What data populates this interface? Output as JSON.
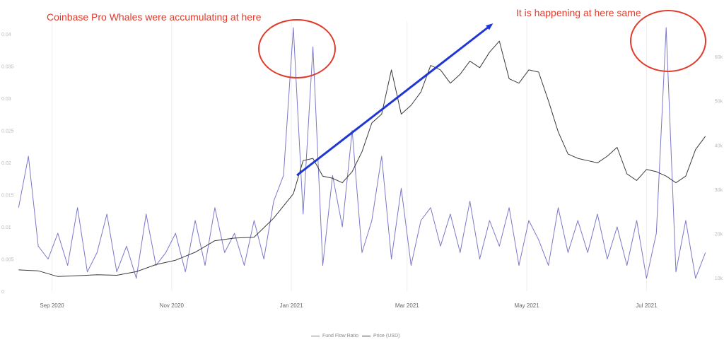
{
  "annotations": {
    "left": "Coinbase Pro Whales were accumulating at here",
    "right": "It is happening at here same"
  },
  "colors": {
    "fund_flow": "#7b78c9",
    "price": "#3a3a3a",
    "annotation": "#e03a2a",
    "arrow": "#1f36d6",
    "grid": "#eeeeee",
    "tick": "#bbbbbb"
  },
  "chart_data": {
    "type": "line",
    "xlabel": "",
    "ylabel": "",
    "x_tick_labels": [
      "Sep 2020",
      "Nov 2020",
      "Jan 2021",
      "Mar 2021",
      "May 2021",
      "Jul 2021"
    ],
    "y_left_ticks": [
      "0",
      "0.005",
      "0.01",
      "0.015",
      "0.02",
      "0.025",
      "0.03",
      "0.035",
      "0.04"
    ],
    "y_right_ticks": [
      "10k",
      "20k",
      "30k",
      "40k",
      "50k",
      "60k"
    ],
    "ylim_left": [
      0,
      0.042
    ],
    "ylim_right": [
      7000,
      68000
    ],
    "grid": true,
    "legend_position": "bottom-center",
    "series": [
      {
        "name": "Fund Flow Ratio",
        "axis": "left",
        "x": [
          "2020-08-15",
          "2020-08-20",
          "2020-08-25",
          "2020-08-30",
          "2020-09-04",
          "2020-09-09",
          "2020-09-14",
          "2020-09-19",
          "2020-09-24",
          "2020-09-29",
          "2020-10-04",
          "2020-10-09",
          "2020-10-14",
          "2020-10-19",
          "2020-10-24",
          "2020-10-29",
          "2020-11-03",
          "2020-11-08",
          "2020-11-13",
          "2020-11-18",
          "2020-11-23",
          "2020-11-28",
          "2020-12-03",
          "2020-12-08",
          "2020-12-13",
          "2020-12-18",
          "2020-12-23",
          "2020-12-28",
          "2021-01-02",
          "2021-01-07",
          "2021-01-12",
          "2021-01-17",
          "2021-01-22",
          "2021-01-27",
          "2021-02-01",
          "2021-02-06",
          "2021-02-11",
          "2021-02-16",
          "2021-02-21",
          "2021-02-26",
          "2021-03-03",
          "2021-03-08",
          "2021-03-13",
          "2021-03-18",
          "2021-03-23",
          "2021-03-28",
          "2021-04-02",
          "2021-04-07",
          "2021-04-12",
          "2021-04-17",
          "2021-04-22",
          "2021-04-27",
          "2021-05-02",
          "2021-05-07",
          "2021-05-12",
          "2021-05-17",
          "2021-05-22",
          "2021-05-27",
          "2021-06-01",
          "2021-06-06",
          "2021-06-11",
          "2021-06-16",
          "2021-06-21",
          "2021-06-26",
          "2021-07-01",
          "2021-07-06",
          "2021-07-11",
          "2021-07-16",
          "2021-07-21",
          "2021-07-26",
          "2021-07-31"
        ],
        "values": [
          0.013,
          0.021,
          0.007,
          0.005,
          0.009,
          0.004,
          0.013,
          0.003,
          0.006,
          0.012,
          0.003,
          0.007,
          0.002,
          0.012,
          0.004,
          0.006,
          0.009,
          0.003,
          0.011,
          0.004,
          0.013,
          0.006,
          0.009,
          0.004,
          0.011,
          0.005,
          0.014,
          0.018,
          0.041,
          0.012,
          0.038,
          0.004,
          0.018,
          0.01,
          0.025,
          0.006,
          0.011,
          0.021,
          0.005,
          0.016,
          0.004,
          0.011,
          0.013,
          0.007,
          0.012,
          0.006,
          0.014,
          0.005,
          0.011,
          0.007,
          0.013,
          0.004,
          0.011,
          0.008,
          0.004,
          0.013,
          0.006,
          0.011,
          0.006,
          0.012,
          0.005,
          0.01,
          0.004,
          0.011,
          0.002,
          0.009,
          0.041,
          0.003,
          0.011,
          0.002,
          0.006
        ]
      },
      {
        "name": "Price (USD)",
        "axis": "right",
        "x": [
          "2020-08-15",
          "2020-08-25",
          "2020-09-04",
          "2020-09-14",
          "2020-09-24",
          "2020-10-04",
          "2020-10-14",
          "2020-10-24",
          "2020-11-03",
          "2020-11-13",
          "2020-11-23",
          "2020-12-03",
          "2020-12-13",
          "2020-12-23",
          "2021-01-02",
          "2021-01-07",
          "2021-01-12",
          "2021-01-17",
          "2021-01-22",
          "2021-01-27",
          "2021-02-01",
          "2021-02-06",
          "2021-02-11",
          "2021-02-16",
          "2021-02-21",
          "2021-02-26",
          "2021-03-03",
          "2021-03-08",
          "2021-03-13",
          "2021-03-18",
          "2021-03-23",
          "2021-03-28",
          "2021-04-02",
          "2021-04-07",
          "2021-04-12",
          "2021-04-17",
          "2021-04-22",
          "2021-04-27",
          "2021-05-02",
          "2021-05-07",
          "2021-05-12",
          "2021-05-17",
          "2021-05-22",
          "2021-05-27",
          "2021-06-01",
          "2021-06-06",
          "2021-06-11",
          "2021-06-16",
          "2021-06-21",
          "2021-06-26",
          "2021-07-01",
          "2021-07-06",
          "2021-07-11",
          "2021-07-16",
          "2021-07-21",
          "2021-07-26",
          "2021-07-31"
        ],
        "values": [
          11800,
          11600,
          10300,
          10500,
          10700,
          10600,
          11400,
          13000,
          14000,
          15800,
          18400,
          19000,
          19200,
          23500,
          29000,
          36500,
          37000,
          33000,
          32500,
          31500,
          34000,
          38500,
          45000,
          47000,
          57000,
          47000,
          49000,
          52000,
          58000,
          57000,
          54000,
          56000,
          59000,
          57500,
          61000,
          63500,
          55000,
          54000,
          57000,
          56500,
          50000,
          43000,
          38000,
          37000,
          36500,
          36000,
          37500,
          39500,
          33500,
          32000,
          34500,
          34000,
          33000,
          31500,
          33000,
          39000,
          42000
        ]
      }
    ]
  }
}
